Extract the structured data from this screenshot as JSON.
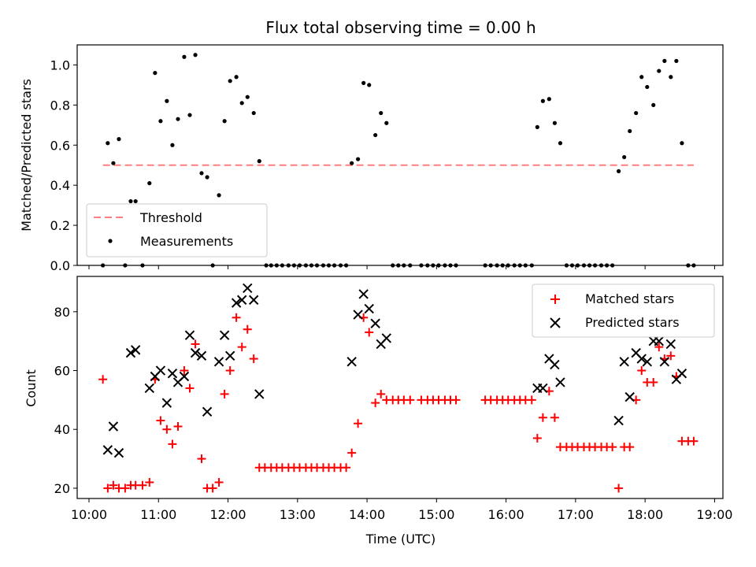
{
  "chart_data": [
    {
      "type": "scatter",
      "title": "Flux total observing time = 0.00 h",
      "ylabel": "Matched/Predicted stars",
      "xlabel": "",
      "xlim": [
        9.83,
        19.12
      ],
      "ylim": [
        0,
        1.1
      ],
      "yticks": [
        0.0,
        0.2,
        0.4,
        0.6,
        0.8,
        1.0
      ],
      "ytick_labels": [
        "0.0",
        "0.2",
        "0.4",
        "0.6",
        "0.8",
        "1.0"
      ],
      "legend_position": "lower-left",
      "grid": false,
      "series": [
        {
          "name": "Threshold",
          "style": "dashed-line",
          "color": "#ff7f7f",
          "x": [
            10.2,
            18.7
          ],
          "y": [
            0.5,
            0.5
          ]
        },
        {
          "name": "Measurements",
          "style": "dot",
          "color": "#000000",
          "points": [
            [
              10.2,
              0.0
            ],
            [
              10.27,
              0.61
            ],
            [
              10.35,
              0.51
            ],
            [
              10.43,
              0.63
            ],
            [
              10.52,
              0.0
            ],
            [
              10.6,
              0.32
            ],
            [
              10.67,
              0.32
            ],
            [
              10.77,
              0.0
            ],
            [
              10.87,
              0.41
            ],
            [
              10.95,
              0.96
            ],
            [
              11.03,
              0.72
            ],
            [
              11.12,
              0.82
            ],
            [
              11.2,
              0.6
            ],
            [
              11.28,
              0.73
            ],
            [
              11.37,
              1.04
            ],
            [
              11.45,
              0.75
            ],
            [
              11.53,
              1.05
            ],
            [
              11.62,
              0.46
            ],
            [
              11.7,
              0.44
            ],
            [
              11.78,
              0.0
            ],
            [
              11.87,
              0.35
            ],
            [
              11.95,
              0.72
            ],
            [
              12.03,
              0.92
            ],
            [
              12.12,
              0.94
            ],
            [
              12.2,
              0.81
            ],
            [
              12.28,
              0.84
            ],
            [
              12.37,
              0.76
            ],
            [
              12.45,
              0.52
            ],
            [
              12.55,
              0.0
            ],
            [
              12.62,
              0.0
            ],
            [
              12.7,
              0.0
            ],
            [
              12.78,
              0.0
            ],
            [
              12.87,
              0.0
            ],
            [
              12.95,
              0.0
            ],
            [
              13.03,
              0.0
            ],
            [
              13.12,
              0.0
            ],
            [
              13.2,
              0.0
            ],
            [
              13.28,
              0.0
            ],
            [
              13.37,
              0.0
            ],
            [
              13.45,
              0.0
            ],
            [
              13.53,
              0.0
            ],
            [
              13.62,
              0.0
            ],
            [
              13.7,
              0.0
            ],
            [
              13.78,
              0.51
            ],
            [
              13.87,
              0.53
            ],
            [
              13.95,
              0.91
            ],
            [
              14.03,
              0.9
            ],
            [
              14.12,
              0.65
            ],
            [
              14.2,
              0.76
            ],
            [
              14.28,
              0.71
            ],
            [
              14.37,
              0.0
            ],
            [
              14.45,
              0.0
            ],
            [
              14.53,
              0.0
            ],
            [
              14.62,
              0.0
            ],
            [
              14.78,
              0.0
            ],
            [
              14.87,
              0.0
            ],
            [
              14.95,
              0.0
            ],
            [
              15.03,
              0.0
            ],
            [
              15.12,
              0.0
            ],
            [
              15.2,
              0.0
            ],
            [
              15.28,
              0.0
            ],
            [
              15.7,
              0.0
            ],
            [
              15.78,
              0.0
            ],
            [
              15.87,
              0.0
            ],
            [
              15.95,
              0.0
            ],
            [
              16.03,
              0.0
            ],
            [
              16.12,
              0.0
            ],
            [
              16.2,
              0.0
            ],
            [
              16.28,
              0.0
            ],
            [
              16.37,
              0.0
            ],
            [
              16.45,
              0.69
            ],
            [
              16.53,
              0.82
            ],
            [
              16.62,
              0.83
            ],
            [
              16.7,
              0.71
            ],
            [
              16.78,
              0.61
            ],
            [
              16.87,
              0.0
            ],
            [
              16.95,
              0.0
            ],
            [
              17.03,
              0.0
            ],
            [
              17.12,
              0.0
            ],
            [
              17.2,
              0.0
            ],
            [
              17.28,
              0.0
            ],
            [
              17.37,
              0.0
            ],
            [
              17.45,
              0.0
            ],
            [
              17.53,
              0.0
            ],
            [
              17.62,
              0.47
            ],
            [
              17.7,
              0.54
            ],
            [
              17.78,
              0.67
            ],
            [
              17.87,
              0.76
            ],
            [
              17.95,
              0.94
            ],
            [
              18.03,
              0.89
            ],
            [
              18.12,
              0.8
            ],
            [
              18.2,
              0.97
            ],
            [
              18.28,
              1.02
            ],
            [
              18.37,
              0.94
            ],
            [
              18.45,
              1.02
            ],
            [
              18.53,
              0.61
            ],
            [
              18.62,
              0.0
            ],
            [
              18.7,
              0.0
            ]
          ]
        }
      ]
    },
    {
      "type": "scatter",
      "title": "",
      "xlabel": "Time (UTC)",
      "ylabel": "Count",
      "xlim": [
        9.83,
        19.12
      ],
      "ylim": [
        16.5,
        92
      ],
      "xticks": [
        10,
        11,
        12,
        13,
        14,
        15,
        16,
        17,
        18,
        19
      ],
      "xtick_labels": [
        "10:00",
        "11:00",
        "12:00",
        "13:00",
        "14:00",
        "15:00",
        "16:00",
        "17:00",
        "18:00",
        "19:00"
      ],
      "yticks": [
        20,
        40,
        60,
        80
      ],
      "ytick_labels": [
        "20",
        "40",
        "60",
        "80"
      ],
      "legend_position": "upper-right",
      "grid": false,
      "series": [
        {
          "name": "Matched stars",
          "marker": "plus",
          "color": "#ff0000",
          "points": [
            [
              10.2,
              57
            ],
            [
              10.27,
              20
            ],
            [
              10.35,
              21
            ],
            [
              10.43,
              20
            ],
            [
              10.52,
              20
            ],
            [
              10.6,
              21
            ],
            [
              10.67,
              21
            ],
            [
              10.77,
              21
            ],
            [
              10.87,
              22
            ],
            [
              10.95,
              57
            ],
            [
              11.03,
              43
            ],
            [
              11.12,
              40
            ],
            [
              11.2,
              35
            ],
            [
              11.28,
              41
            ],
            [
              11.37,
              60
            ],
            [
              11.45,
              54
            ],
            [
              11.53,
              69
            ],
            [
              11.62,
              30
            ],
            [
              11.7,
              20
            ],
            [
              11.78,
              20
            ],
            [
              11.87,
              22
            ],
            [
              11.95,
              52
            ],
            [
              12.03,
              60
            ],
            [
              12.12,
              78
            ],
            [
              12.2,
              68
            ],
            [
              12.28,
              74
            ],
            [
              12.37,
              64
            ],
            [
              12.45,
              27
            ],
            [
              12.53,
              27
            ],
            [
              12.62,
              27
            ],
            [
              12.7,
              27
            ],
            [
              12.78,
              27
            ],
            [
              12.87,
              27
            ],
            [
              12.95,
              27
            ],
            [
              13.03,
              27
            ],
            [
              13.12,
              27
            ],
            [
              13.2,
              27
            ],
            [
              13.28,
              27
            ],
            [
              13.37,
              27
            ],
            [
              13.45,
              27
            ],
            [
              13.53,
              27
            ],
            [
              13.62,
              27
            ],
            [
              13.7,
              27
            ],
            [
              13.78,
              32
            ],
            [
              13.87,
              42
            ],
            [
              13.95,
              78
            ],
            [
              14.03,
              73
            ],
            [
              14.12,
              49
            ],
            [
              14.2,
              52
            ],
            [
              14.28,
              50
            ],
            [
              14.37,
              50
            ],
            [
              14.45,
              50
            ],
            [
              14.53,
              50
            ],
            [
              14.62,
              50
            ],
            [
              14.78,
              50
            ],
            [
              14.87,
              50
            ],
            [
              14.95,
              50
            ],
            [
              15.03,
              50
            ],
            [
              15.12,
              50
            ],
            [
              15.2,
              50
            ],
            [
              15.28,
              50
            ],
            [
              15.7,
              50
            ],
            [
              15.78,
              50
            ],
            [
              15.87,
              50
            ],
            [
              15.95,
              50
            ],
            [
              16.03,
              50
            ],
            [
              16.12,
              50
            ],
            [
              16.2,
              50
            ],
            [
              16.28,
              50
            ],
            [
              16.37,
              50
            ],
            [
              16.45,
              37
            ],
            [
              16.53,
              44
            ],
            [
              16.62,
              53
            ],
            [
              16.7,
              44
            ],
            [
              16.78,
              34
            ],
            [
              16.87,
              34
            ],
            [
              16.95,
              34
            ],
            [
              17.03,
              34
            ],
            [
              17.12,
              34
            ],
            [
              17.2,
              34
            ],
            [
              17.28,
              34
            ],
            [
              17.37,
              34
            ],
            [
              17.45,
              34
            ],
            [
              17.53,
              34
            ],
            [
              17.62,
              20
            ],
            [
              17.7,
              34
            ],
            [
              17.78,
              34
            ],
            [
              17.87,
              50
            ],
            [
              17.95,
              60
            ],
            [
              18.03,
              56
            ],
            [
              18.12,
              56
            ],
            [
              18.2,
              68
            ],
            [
              18.28,
              64
            ],
            [
              18.37,
              65
            ],
            [
              18.45,
              58
            ],
            [
              18.53,
              36
            ],
            [
              18.62,
              36
            ],
            [
              18.7,
              36
            ]
          ]
        },
        {
          "name": "Predicted stars",
          "marker": "x",
          "color": "#000000",
          "points": [
            [
              10.27,
              33
            ],
            [
              10.35,
              41
            ],
            [
              10.43,
              32
            ],
            [
              10.6,
              66
            ],
            [
              10.67,
              67
            ],
            [
              10.87,
              54
            ],
            [
              10.95,
              58
            ],
            [
              11.03,
              60
            ],
            [
              11.12,
              49
            ],
            [
              11.2,
              59
            ],
            [
              11.28,
              56
            ],
            [
              11.37,
              58
            ],
            [
              11.45,
              72
            ],
            [
              11.53,
              66
            ],
            [
              11.62,
              65
            ],
            [
              11.7,
              46
            ],
            [
              11.87,
              63
            ],
            [
              11.95,
              72
            ],
            [
              12.03,
              65
            ],
            [
              12.12,
              83
            ],
            [
              12.2,
              84
            ],
            [
              12.28,
              88
            ],
            [
              12.37,
              84
            ],
            [
              12.45,
              52
            ],
            [
              13.78,
              63
            ],
            [
              13.87,
              79
            ],
            [
              13.95,
              86
            ],
            [
              14.03,
              81
            ],
            [
              14.12,
              76
            ],
            [
              14.2,
              69
            ],
            [
              14.28,
              71
            ],
            [
              16.45,
              54
            ],
            [
              16.53,
              54
            ],
            [
              16.62,
              64
            ],
            [
              16.7,
              62
            ],
            [
              16.78,
              56
            ],
            [
              17.62,
              43
            ],
            [
              17.7,
              63
            ],
            [
              17.78,
              51
            ],
            [
              17.87,
              66
            ],
            [
              17.95,
              64
            ],
            [
              18.03,
              63
            ],
            [
              18.12,
              70
            ],
            [
              18.2,
              70
            ],
            [
              18.28,
              63
            ],
            [
              18.37,
              69
            ],
            [
              18.45,
              57
            ],
            [
              18.53,
              59
            ]
          ]
        }
      ]
    }
  ]
}
